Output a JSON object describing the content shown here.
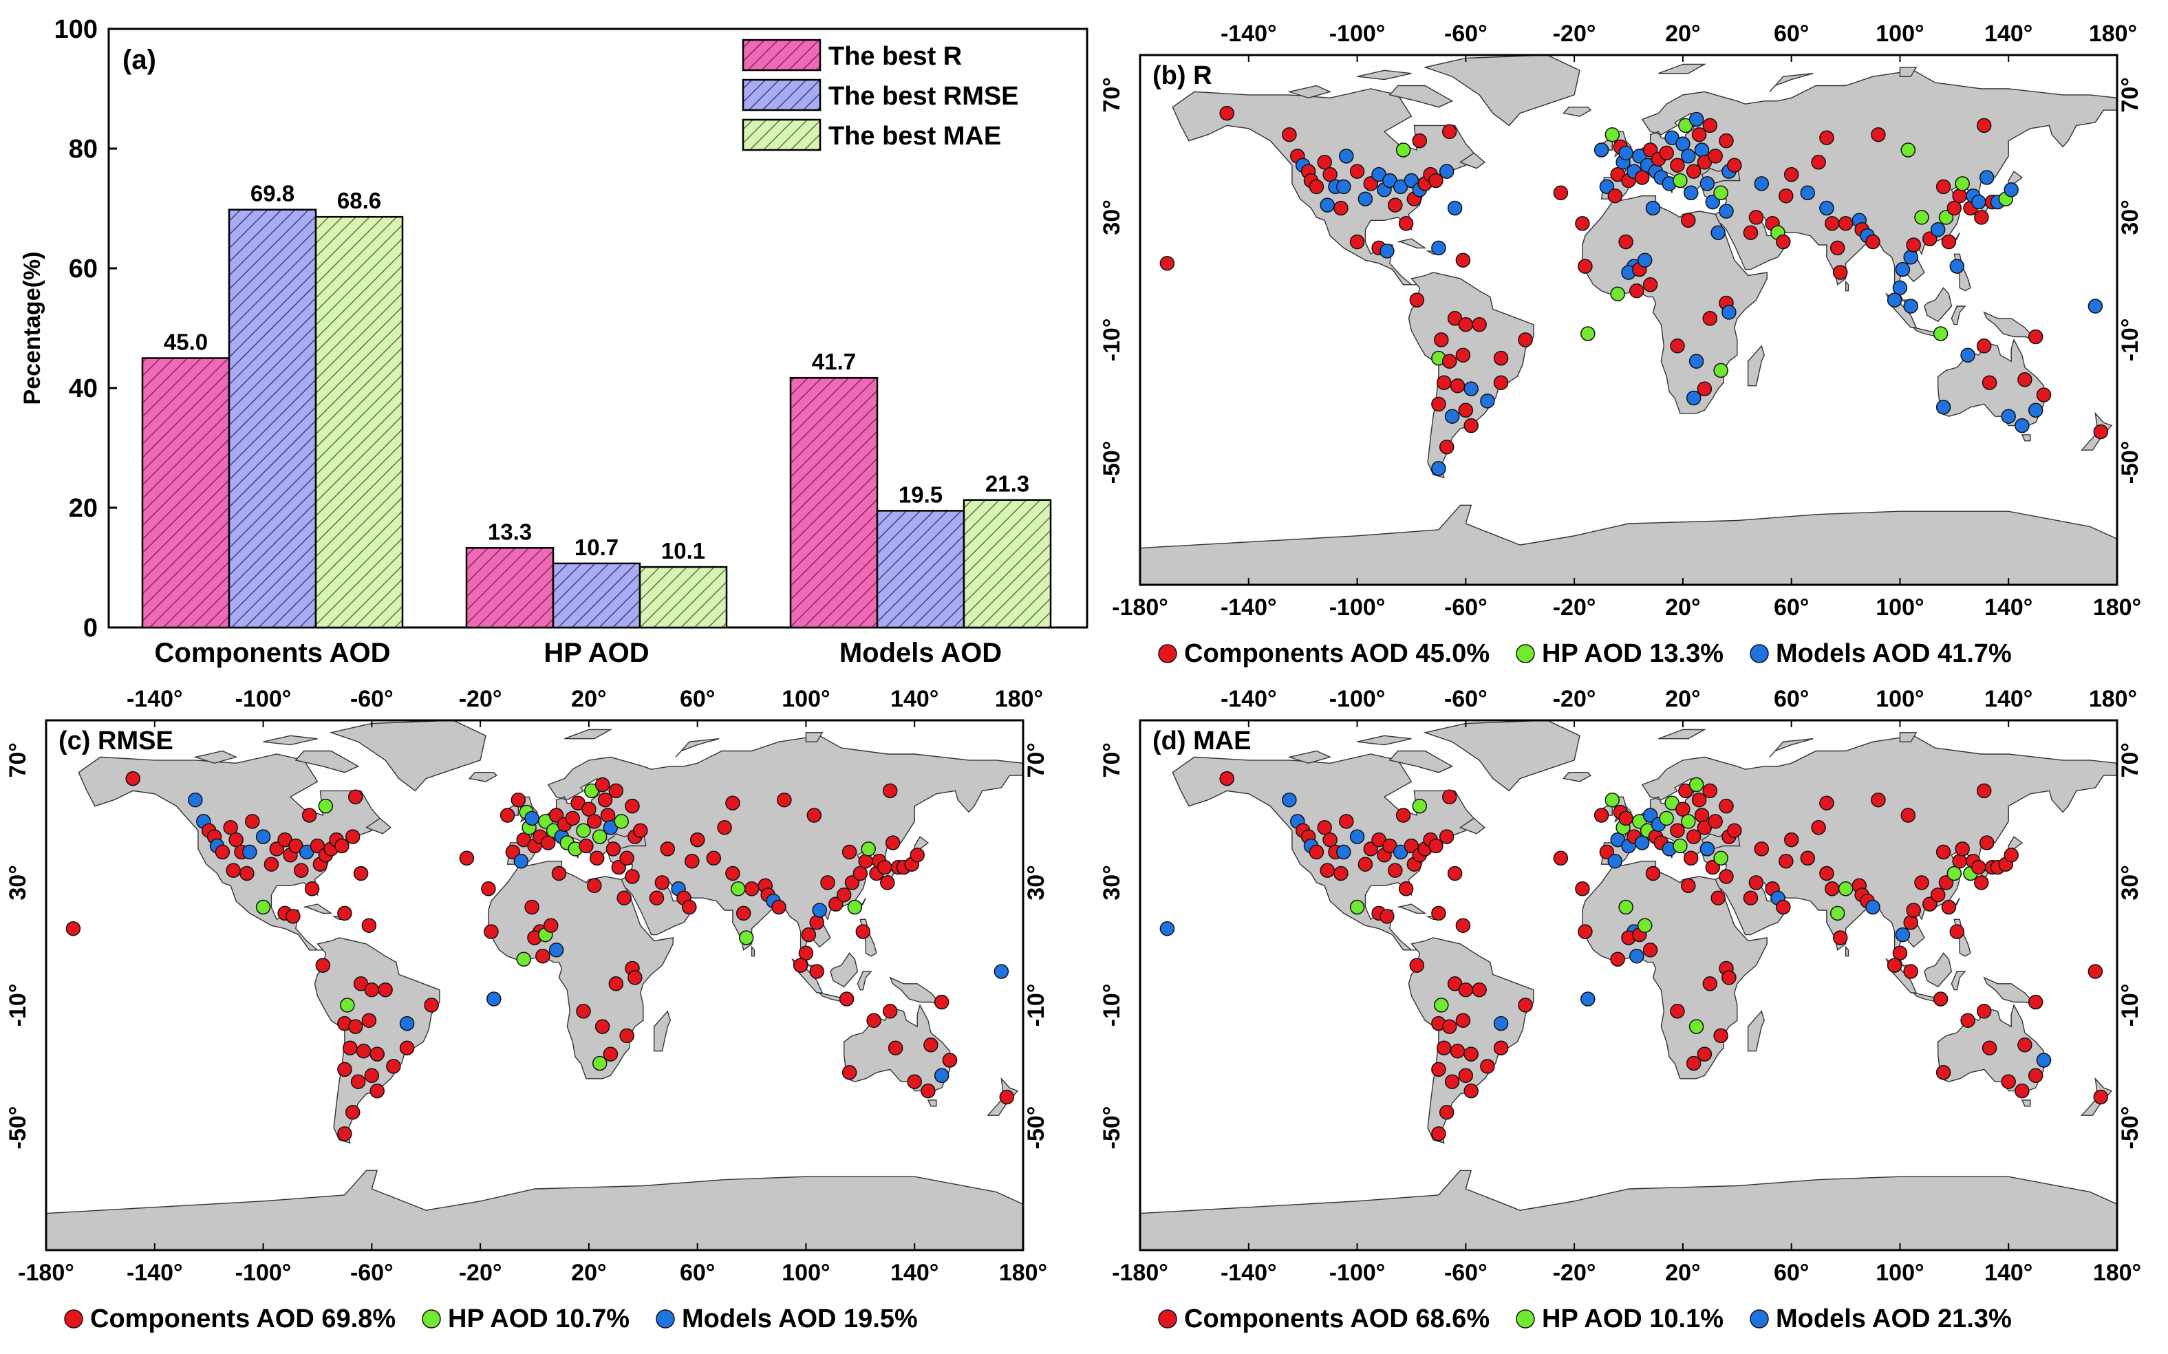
{
  "colors": {
    "components": "#e4161d",
    "hp": "#6fea2e",
    "models": "#1f73e0",
    "bar_r": "#f069b7",
    "bar_rmse": "#a9acf3",
    "bar_mae": "#d9f2b6",
    "land": "#c6c6c6"
  },
  "chart_data": [
    {
      "type": "bar",
      "panel_label": "(a)",
      "ylabel": "Pecentage(%)",
      "ylim": [
        0,
        100
      ],
      "yticks": [
        0,
        20,
        40,
        60,
        80,
        100
      ],
      "categories": [
        "Components AOD",
        "HP AOD",
        "Models AOD"
      ],
      "series": [
        {
          "name": "The best R",
          "values": [
            45.0,
            13.3,
            41.7
          ],
          "labels": [
            "45.0",
            "13.3",
            "41.7"
          ]
        },
        {
          "name": "The best RMSE",
          "values": [
            69.8,
            10.7,
            19.5
          ],
          "labels": [
            "69.8",
            "10.7",
            "19.5"
          ]
        },
        {
          "name": "The best MAE",
          "values": [
            68.6,
            10.1,
            21.3
          ],
          "labels": [
            "68.6",
            "10.1",
            "21.3"
          ]
        }
      ],
      "legend_position": "top-right",
      "grid": false
    },
    {
      "type": "scatter",
      "panel_label": "(b) R",
      "xlim": [
        -180,
        180
      ],
      "ylim": [
        -90,
        90
      ],
      "xticks": [
        "-180°",
        "-140°",
        "-100°",
        "-60°",
        "-20°",
        "20°",
        "60°",
        "100°",
        "140°",
        "180°"
      ],
      "top_xticks": [
        "-140°",
        "-100°",
        "-60°",
        "-20°",
        "20°",
        "60°",
        "100°",
        "140°",
        "180°"
      ],
      "yticks": [
        "70°",
        "30°",
        "-10°",
        "-50°"
      ],
      "legend": [
        {
          "label": "Components AOD 45.0%",
          "color_key": "components"
        },
        {
          "label": "HP AOD 13.3%",
          "color_key": "hp"
        },
        {
          "label": "Models AOD 41.7%",
          "color_key": "models"
        }
      ]
    },
    {
      "type": "scatter",
      "panel_label": "(c) RMSE",
      "xlim": [
        -180,
        180
      ],
      "ylim": [
        -90,
        90
      ],
      "xticks": [
        "-180°",
        "-140°",
        "-100°",
        "-60°",
        "-20°",
        "20°",
        "60°",
        "100°",
        "140°",
        "180°"
      ],
      "top_xticks": [
        "-140°",
        "-100°",
        "-60°",
        "-20°",
        "20°",
        "60°",
        "100°",
        "140°",
        "180°"
      ],
      "yticks": [
        "70°",
        "30°",
        "-10°",
        "-50°"
      ],
      "legend": [
        {
          "label": "Components AOD 69.8%",
          "color_key": "components"
        },
        {
          "label": "HP AOD 10.7%",
          "color_key": "hp"
        },
        {
          "label": "Models AOD 19.5%",
          "color_key": "models"
        }
      ]
    },
    {
      "type": "scatter",
      "panel_label": "(d) MAE",
      "xlim": [
        -180,
        180
      ],
      "ylim": [
        -90,
        90
      ],
      "xticks": [
        "-180°",
        "-140°",
        "-100°",
        "-60°",
        "-20°",
        "20°",
        "60°",
        "100°",
        "140°",
        "180°"
      ],
      "top_xticks": [
        "-140°",
        "-100°",
        "-60°",
        "-20°",
        "20°",
        "60°",
        "100°",
        "140°",
        "180°"
      ],
      "yticks": [
        "70°",
        "30°",
        "-10°",
        "-50°"
      ],
      "legend": [
        {
          "label": "Components AOD 68.6%",
          "color_key": "components"
        },
        {
          "label": "HP AOD 10.1%",
          "color_key": "hp"
        },
        {
          "label": "Models AOD 21.3%",
          "color_key": "models"
        }
      ]
    }
  ],
  "sites": [
    [
      -148,
      64
    ],
    [
      -125,
      57
    ],
    [
      -122,
      50
    ],
    [
      -120,
      47
    ],
    [
      -118,
      45
    ],
    [
      -117,
      42
    ],
    [
      -115,
      40
    ],
    [
      -112,
      48
    ],
    [
      -111,
      34
    ],
    [
      -110,
      44
    ],
    [
      -108,
      40
    ],
    [
      -106,
      33
    ],
    [
      -105,
      40
    ],
    [
      -104,
      50
    ],
    [
      -100,
      45
    ],
    [
      -97,
      36
    ],
    [
      -95,
      41
    ],
    [
      -92,
      44
    ],
    [
      -90,
      39
    ],
    [
      -88,
      42
    ],
    [
      -86,
      34
    ],
    [
      -84,
      40
    ],
    [
      -82,
      28
    ],
    [
      -80,
      42
    ],
    [
      -79,
      36
    ],
    [
      -77,
      39
    ],
    [
      -75,
      41
    ],
    [
      -73,
      44
    ],
    [
      -71,
      42
    ],
    [
      -67,
      45
    ],
    [
      -66,
      58
    ],
    [
      -83,
      52
    ],
    [
      -77,
      55
    ],
    [
      -64,
      33
    ],
    [
      -100,
      22
    ],
    [
      -92,
      20
    ],
    [
      -89,
      19
    ],
    [
      -70,
      20
    ],
    [
      -61,
      16
    ],
    [
      -78,
      3
    ],
    [
      -69,
      -10
    ],
    [
      -64,
      -3
    ],
    [
      -60,
      -5
    ],
    [
      -55,
      -5
    ],
    [
      -70,
      -16
    ],
    [
      -66,
      -17
    ],
    [
      -61,
      -15
    ],
    [
      -63,
      -25
    ],
    [
      -68,
      -24
    ],
    [
      -58,
      -26
    ],
    [
      -60,
      -33
    ],
    [
      -65,
      -35
    ],
    [
      -70,
      -31
    ],
    [
      -58,
      -38
    ],
    [
      -67,
      -45
    ],
    [
      -70,
      -52
    ],
    [
      -47,
      -16
    ],
    [
      -38,
      -10
    ],
    [
      -47,
      -24
    ],
    [
      -52,
      -30
    ],
    [
      -25,
      38
    ],
    [
      -17,
      28
    ],
    [
      -16,
      14
    ],
    [
      -15,
      -8
    ],
    [
      -8,
      40
    ],
    [
      -5,
      37
    ],
    [
      -4,
      44
    ],
    [
      -2,
      48
    ],
    [
      0,
      42
    ],
    [
      2,
      45
    ],
    [
      4,
      50
    ],
    [
      5,
      43
    ],
    [
      7,
      47
    ],
    [
      8,
      52
    ],
    [
      10,
      45
    ],
    [
      11,
      49
    ],
    [
      12,
      43
    ],
    [
      14,
      51
    ],
    [
      15,
      41
    ],
    [
      16,
      56
    ],
    [
      18,
      47
    ],
    [
      19,
      42
    ],
    [
      20,
      54
    ],
    [
      21,
      60
    ],
    [
      22,
      50
    ],
    [
      23,
      38
    ],
    [
      24,
      45
    ],
    [
      25,
      62
    ],
    [
      26,
      57
    ],
    [
      27,
      52
    ],
    [
      28,
      48
    ],
    [
      29,
      41
    ],
    [
      30,
      60
    ],
    [
      31,
      35
    ],
    [
      32,
      50
    ],
    [
      34,
      38
    ],
    [
      36,
      55
    ],
    [
      37,
      45
    ],
    [
      39,
      47
    ],
    [
      36,
      32
    ],
    [
      -10,
      52
    ],
    [
      -3,
      53
    ],
    [
      -6,
      57
    ],
    [
      -1,
      51
    ],
    [
      2,
      14
    ],
    [
      0,
      12
    ],
    [
      4,
      13
    ],
    [
      6,
      16
    ],
    [
      8,
      8
    ],
    [
      3,
      6
    ],
    [
      -4,
      5
    ],
    [
      -1,
      22
    ],
    [
      9,
      33
    ],
    [
      22,
      29
    ],
    [
      33,
      25
    ],
    [
      36,
      2
    ],
    [
      37,
      -1
    ],
    [
      30,
      -3
    ],
    [
      34,
      -20
    ],
    [
      28,
      -26
    ],
    [
      24,
      -29
    ],
    [
      25,
      -17
    ],
    [
      18,
      -12
    ],
    [
      45,
      25
    ],
    [
      47,
      30
    ],
    [
      53,
      28
    ],
    [
      55,
      25
    ],
    [
      57,
      22
    ],
    [
      49,
      41
    ],
    [
      58,
      37
    ],
    [
      60,
      44
    ],
    [
      66,
      38
    ],
    [
      70,
      48
    ],
    [
      73,
      33
    ],
    [
      75,
      28
    ],
    [
      77,
      20
    ],
    [
      78,
      12
    ],
    [
      80,
      28
    ],
    [
      85,
      29
    ],
    [
      86,
      26
    ],
    [
      88,
      24
    ],
    [
      90,
      22
    ],
    [
      92,
      57
    ],
    [
      73,
      56
    ],
    [
      103,
      52
    ],
    [
      108,
      30
    ],
    [
      104,
      17
    ],
    [
      105,
      21
    ],
    [
      101,
      13
    ],
    [
      100,
      7
    ],
    [
      111,
      23
    ],
    [
      114,
      26
    ],
    [
      116,
      40
    ],
    [
      117,
      30
    ],
    [
      118,
      22
    ],
    [
      120,
      33
    ],
    [
      121,
      14
    ],
    [
      122,
      37
    ],
    [
      123,
      41
    ],
    [
      126,
      33
    ],
    [
      127,
      37
    ],
    [
      129,
      35
    ],
    [
      130,
      30
    ],
    [
      131,
      60
    ],
    [
      132,
      43
    ],
    [
      134,
      35
    ],
    [
      136,
      35
    ],
    [
      139,
      36
    ],
    [
      141,
      39
    ],
    [
      115,
      -8
    ],
    [
      125,
      -15
    ],
    [
      131,
      -12
    ],
    [
      133,
      -24
    ],
    [
      140,
      -35
    ],
    [
      146,
      -23
    ],
    [
      150,
      -33
    ],
    [
      153,
      -28
    ],
    [
      145,
      -38
    ],
    [
      116,
      -32
    ],
    [
      174,
      -40
    ],
    [
      172,
      1
    ],
    [
      -170,
      15
    ],
    [
      98,
      3
    ],
    [
      104,
      1
    ],
    [
      150,
      -9
    ]
  ],
  "panels": {
    "b": "CCCMCCCCMCMCMMCMCMMMCMCMCMCCCMCHCMCCMMCCCCCCHCCCCMCMCCCMCCCMCCCHMCCMCMMCMCMCMCMMCHMHMMCMCMCMCMCHCMCMMCHMMMCMCCHCMCMCMCHCMMCCCCHCMCCMCMCCCCMCMCCCHHMCMMCMCHCCMCHCMMCCMCMHMHMCCMCMCMMCMCMMCCMCCMMCC",
    "c": "CMMCCMCCCCCCMCMCCCCCCMCCCCCCCCCCHCHCCCCCHCCCCCCCCCCCCCCCMCCCCCCMCMCHCCHCHCMCHCHCHCCHCCHCCCMCCCHCCCCCCHCMCCHCMCHCCCCCCCCCHCCCCMCCCCCCCCHCHCCCMCCCCCCMCCCCCCHCCCHCCCCCCCCCCCCCCCCMCCCCMCCCCCCHCCCC",
    "d": "CMMCCMCCCCCCMCMCCCCCCMCCCCCCCCCCHCHCCCCCHCCCCCCCCCCCCCCCMCCCCCCMCMMHMCHMHMCMCHMHCHCCHCCHCCCMCCCHCCCCCCHCMCCHCMCHCCCCCCCCCHCCCCMCCCCCCCCHCHCCCMCCCCCCMCCCCCCHCCCHCCCCCCCCCCCCCCCCMCCCCMCCCCCCHCCCC"
  }
}
